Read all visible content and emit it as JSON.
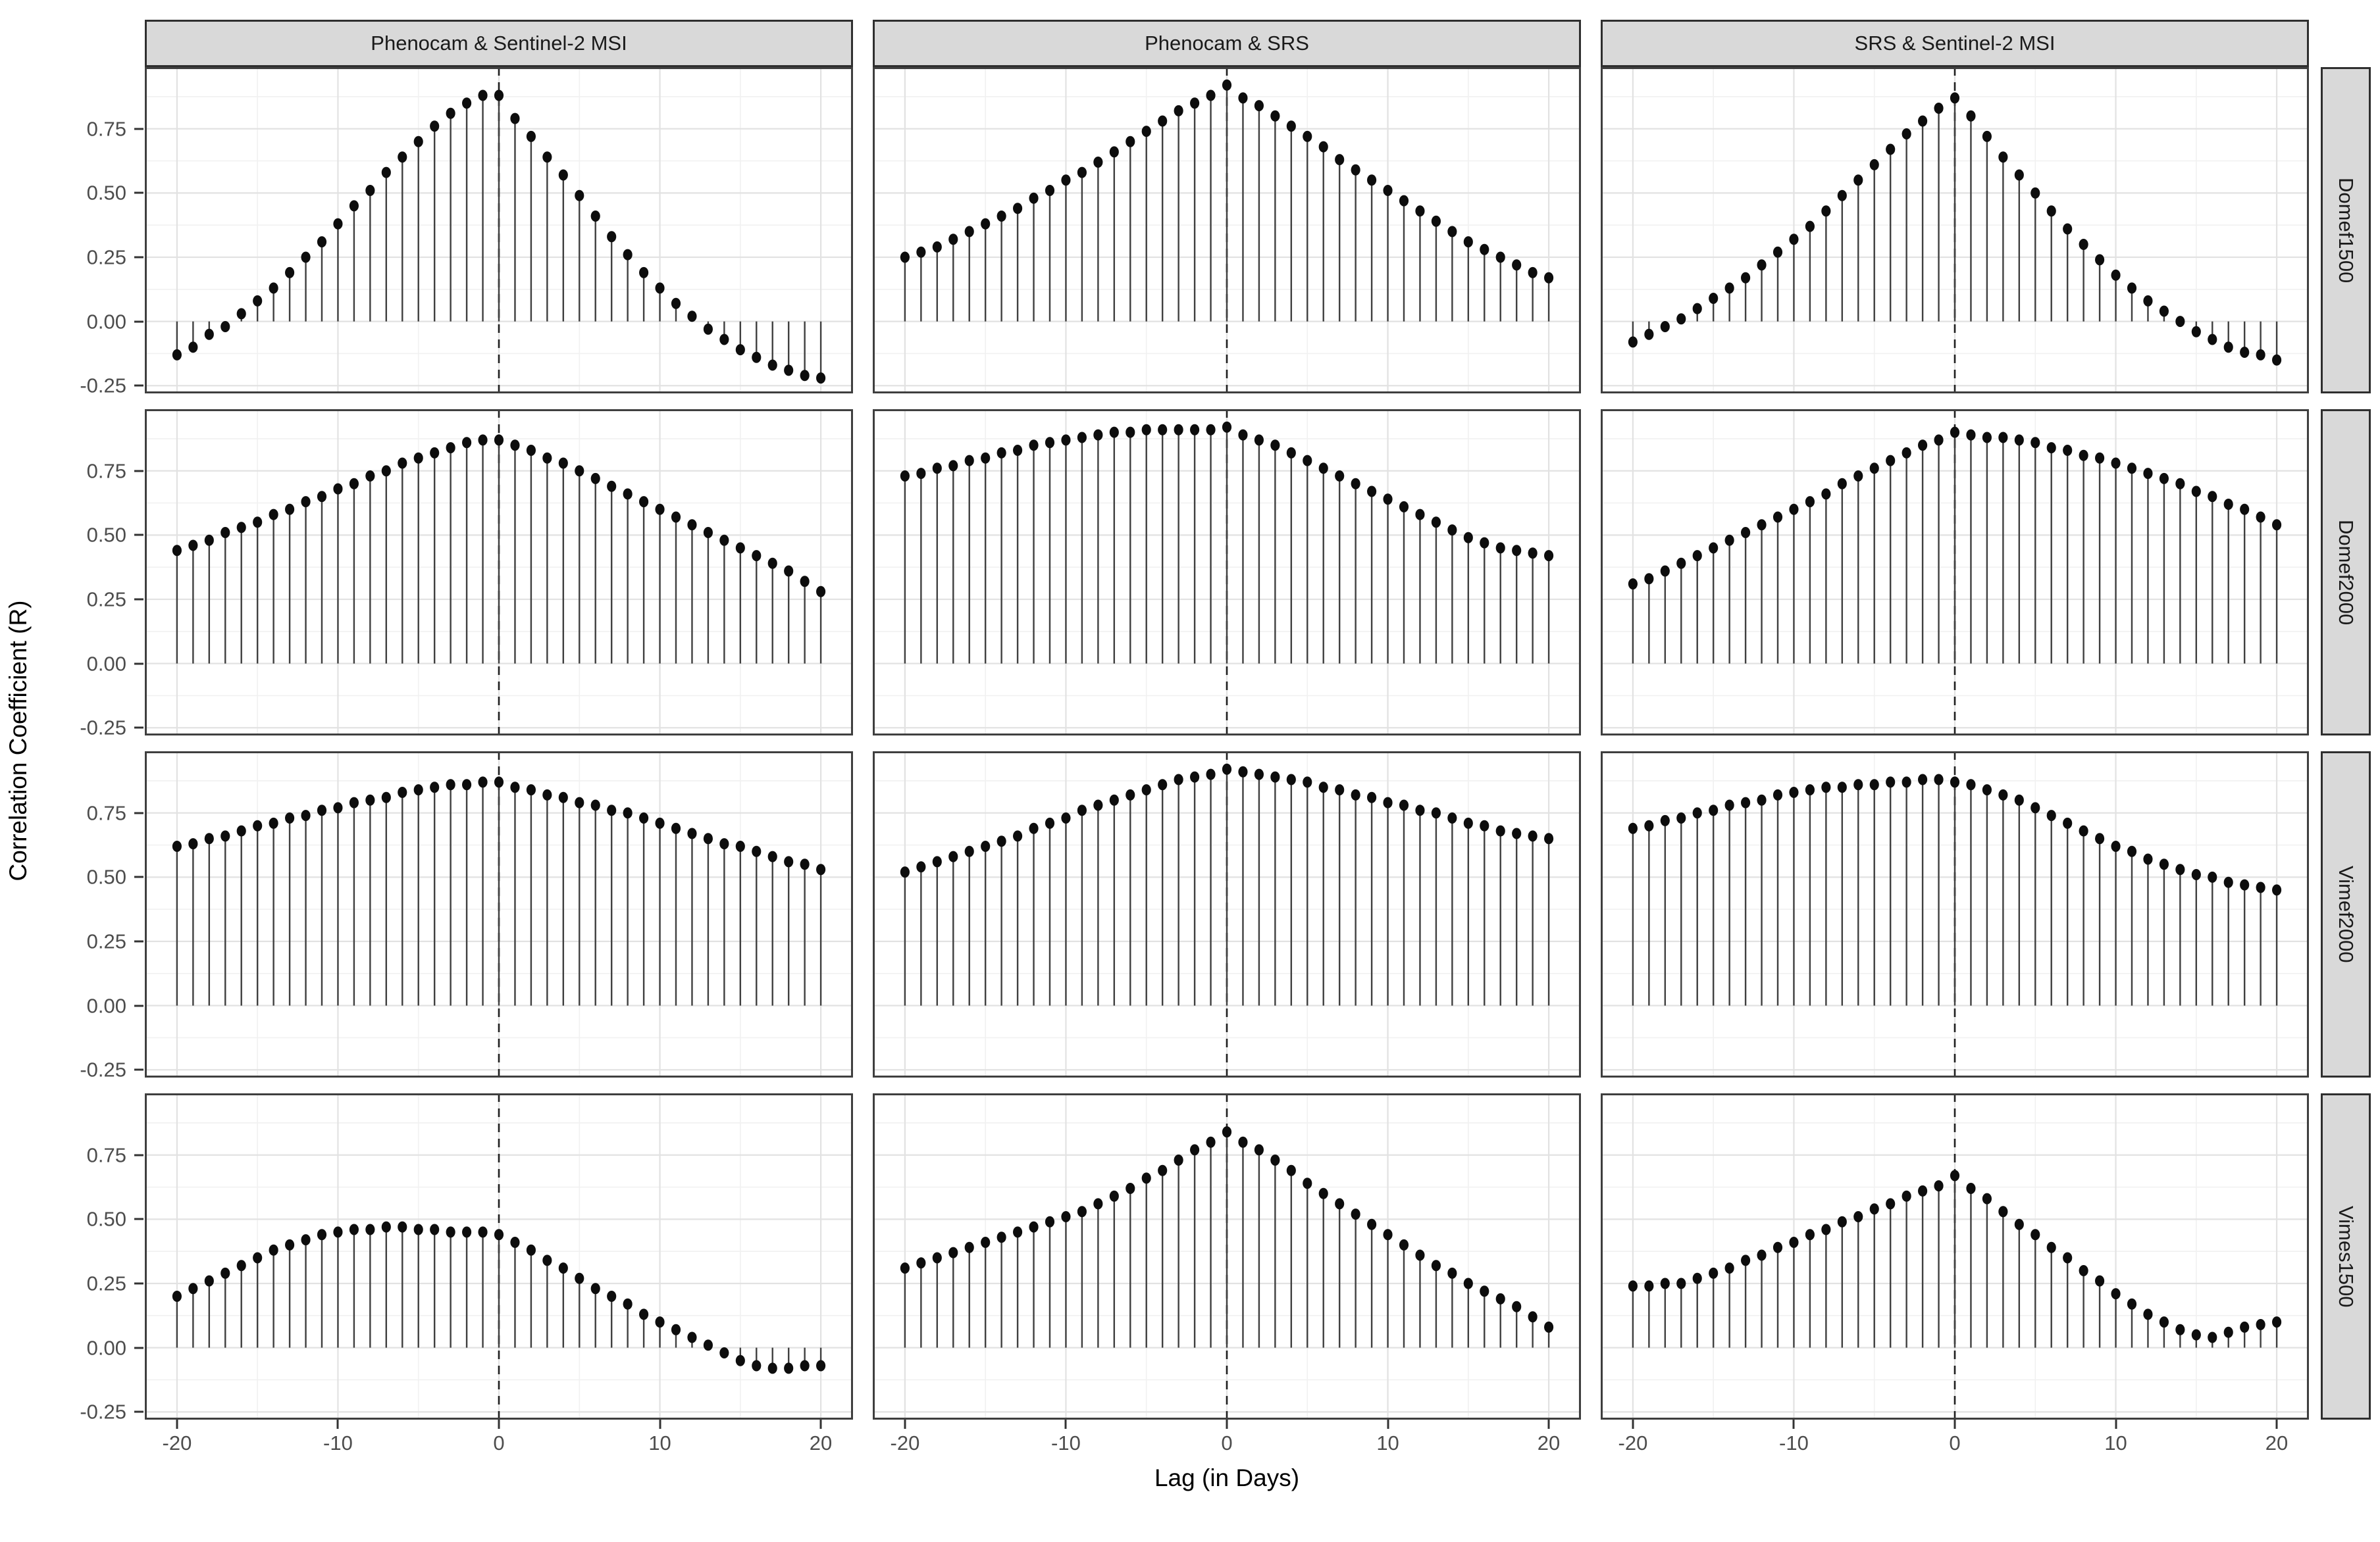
{
  "figure": {
    "background": "#ffffff"
  },
  "colors": {
    "strip_bg": "#d9d9d9",
    "strip_border": "#2f2f2f",
    "panel_border": "#3f3f3f",
    "grid_major": "#e2e2e2",
    "grid_minor": "#f1f1f1",
    "stem": "#404040",
    "point": "#0d0d0d",
    "dashed_line": "#1f1f1f",
    "tick_text": "#4d4d4d"
  },
  "chart_data": {
    "type": "stem",
    "x_label": "Lag (in Days)",
    "y_label": "Correlation Coefficient (R)",
    "x": [
      -20,
      -19,
      -18,
      -17,
      -16,
      -15,
      -14,
      -13,
      -12,
      -11,
      -10,
      -9,
      -8,
      -7,
      -6,
      -5,
      -4,
      -3,
      -2,
      -1,
      0,
      1,
      2,
      3,
      4,
      5,
      6,
      7,
      8,
      9,
      10,
      11,
      12,
      13,
      14,
      15,
      16,
      17,
      18,
      19,
      20
    ],
    "xlim": [
      -22,
      22
    ],
    "ylim": [
      -0.28,
      0.99
    ],
    "x_ticks": [
      -20,
      -10,
      0,
      10,
      20
    ],
    "x_tick_labels": [
      "-20",
      "-10",
      "0",
      "10",
      "20"
    ],
    "x_minor_ticks": [
      -15,
      -5,
      5,
      15
    ],
    "y_ticks": [
      0.75,
      0.5,
      0.25,
      0,
      -0.25
    ],
    "y_tick_labels": [
      "0.75",
      "0.50",
      "0.25",
      "0.00",
      "-0.25"
    ],
    "y_minor_ticks": [
      0.875,
      0.625,
      0.375,
      0.125,
      -0.125
    ],
    "reference_line_x": 0,
    "grid": "on",
    "facet_columns": [
      "Phenocam & Sentinel-2 MSI",
      "Phenocam & SRS",
      "SRS & Sentinel-2 MSI"
    ],
    "facet_rows": [
      "Domef1500",
      "Domef2000",
      "Vimef2000",
      "Vimes1500"
    ],
    "panels": [
      {
        "row": "Domef1500",
        "col": "Phenocam & Sentinel-2 MSI",
        "values": [
          -0.13,
          -0.1,
          -0.05,
          -0.02,
          0.03,
          0.08,
          0.13,
          0.19,
          0.25,
          0.31,
          0.38,
          0.45,
          0.51,
          0.58,
          0.64,
          0.7,
          0.76,
          0.81,
          0.85,
          0.88,
          0.88,
          0.79,
          0.72,
          0.64,
          0.57,
          0.49,
          0.41,
          0.33,
          0.26,
          0.19,
          0.13,
          0.07,
          0.02,
          -0.03,
          -0.07,
          -0.11,
          -0.14,
          -0.17,
          -0.19,
          -0.21,
          -0.22
        ]
      },
      {
        "row": "Domef1500",
        "col": "Phenocam & SRS",
        "values": [
          0.25,
          0.27,
          0.29,
          0.32,
          0.35,
          0.38,
          0.41,
          0.44,
          0.48,
          0.51,
          0.55,
          0.58,
          0.62,
          0.66,
          0.7,
          0.74,
          0.78,
          0.82,
          0.85,
          0.88,
          0.92,
          0.87,
          0.84,
          0.8,
          0.76,
          0.72,
          0.68,
          0.63,
          0.59,
          0.55,
          0.51,
          0.47,
          0.43,
          0.39,
          0.35,
          0.31,
          0.28,
          0.25,
          0.22,
          0.19,
          0.17
        ]
      },
      {
        "row": "Domef1500",
        "col": "SRS & Sentinel-2 MSI",
        "values": [
          -0.08,
          -0.05,
          -0.02,
          0.01,
          0.05,
          0.09,
          0.13,
          0.17,
          0.22,
          0.27,
          0.32,
          0.37,
          0.43,
          0.49,
          0.55,
          0.61,
          0.67,
          0.73,
          0.78,
          0.83,
          0.87,
          0.8,
          0.72,
          0.64,
          0.57,
          0.5,
          0.43,
          0.36,
          0.3,
          0.24,
          0.18,
          0.13,
          0.08,
          0.04,
          0.0,
          -0.04,
          -0.07,
          -0.1,
          -0.12,
          -0.13,
          -0.15
        ]
      },
      {
        "row": "Domef2000",
        "col": "Phenocam & Sentinel-2 MSI",
        "values": [
          0.44,
          0.46,
          0.48,
          0.51,
          0.53,
          0.55,
          0.58,
          0.6,
          0.63,
          0.65,
          0.68,
          0.7,
          0.73,
          0.75,
          0.78,
          0.8,
          0.82,
          0.84,
          0.86,
          0.87,
          0.87,
          0.85,
          0.83,
          0.8,
          0.78,
          0.75,
          0.72,
          0.69,
          0.66,
          0.63,
          0.6,
          0.57,
          0.54,
          0.51,
          0.48,
          0.45,
          0.42,
          0.39,
          0.36,
          0.32,
          0.28
        ]
      },
      {
        "row": "Domef2000",
        "col": "Phenocam & SRS",
        "values": [
          0.73,
          0.74,
          0.76,
          0.77,
          0.79,
          0.8,
          0.82,
          0.83,
          0.85,
          0.86,
          0.87,
          0.88,
          0.89,
          0.9,
          0.9,
          0.91,
          0.91,
          0.91,
          0.91,
          0.91,
          0.92,
          0.89,
          0.87,
          0.85,
          0.82,
          0.79,
          0.76,
          0.73,
          0.7,
          0.67,
          0.64,
          0.61,
          0.58,
          0.55,
          0.52,
          0.49,
          0.47,
          0.45,
          0.44,
          0.43,
          0.42
        ]
      },
      {
        "row": "Domef2000",
        "col": "SRS & Sentinel-2 MSI",
        "values": [
          0.31,
          0.33,
          0.36,
          0.39,
          0.42,
          0.45,
          0.48,
          0.51,
          0.54,
          0.57,
          0.6,
          0.63,
          0.66,
          0.7,
          0.73,
          0.76,
          0.79,
          0.82,
          0.85,
          0.87,
          0.9,
          0.89,
          0.88,
          0.88,
          0.87,
          0.86,
          0.84,
          0.83,
          0.81,
          0.8,
          0.78,
          0.76,
          0.74,
          0.72,
          0.7,
          0.67,
          0.65,
          0.62,
          0.6,
          0.57,
          0.54
        ]
      },
      {
        "row": "Vimef2000",
        "col": "Phenocam & Sentinel-2 MSI",
        "values": [
          0.62,
          0.63,
          0.65,
          0.66,
          0.68,
          0.7,
          0.71,
          0.73,
          0.74,
          0.76,
          0.77,
          0.79,
          0.8,
          0.81,
          0.83,
          0.84,
          0.85,
          0.86,
          0.86,
          0.87,
          0.87,
          0.85,
          0.84,
          0.82,
          0.81,
          0.79,
          0.78,
          0.76,
          0.75,
          0.73,
          0.71,
          0.69,
          0.67,
          0.65,
          0.63,
          0.62,
          0.6,
          0.58,
          0.56,
          0.55,
          0.53
        ]
      },
      {
        "row": "Vimef2000",
        "col": "Phenocam & SRS",
        "values": [
          0.52,
          0.54,
          0.56,
          0.58,
          0.6,
          0.62,
          0.64,
          0.66,
          0.69,
          0.71,
          0.73,
          0.76,
          0.78,
          0.8,
          0.82,
          0.84,
          0.86,
          0.88,
          0.89,
          0.9,
          0.92,
          0.91,
          0.9,
          0.89,
          0.88,
          0.87,
          0.85,
          0.84,
          0.82,
          0.81,
          0.79,
          0.78,
          0.76,
          0.75,
          0.73,
          0.71,
          0.7,
          0.68,
          0.67,
          0.66,
          0.65
        ]
      },
      {
        "row": "Vimef2000",
        "col": "SRS & Sentinel-2 MSI",
        "values": [
          0.69,
          0.7,
          0.72,
          0.73,
          0.75,
          0.76,
          0.78,
          0.79,
          0.8,
          0.82,
          0.83,
          0.84,
          0.85,
          0.85,
          0.86,
          0.86,
          0.87,
          0.87,
          0.88,
          0.88,
          0.87,
          0.86,
          0.84,
          0.82,
          0.8,
          0.77,
          0.74,
          0.71,
          0.68,
          0.65,
          0.62,
          0.6,
          0.57,
          0.55,
          0.53,
          0.51,
          0.5,
          0.48,
          0.47,
          0.46,
          0.45
        ]
      },
      {
        "row": "Vimes1500",
        "col": "Phenocam & Sentinel-2 MSI",
        "values": [
          0.2,
          0.23,
          0.26,
          0.29,
          0.32,
          0.35,
          0.38,
          0.4,
          0.42,
          0.44,
          0.45,
          0.46,
          0.46,
          0.47,
          0.47,
          0.46,
          0.46,
          0.45,
          0.45,
          0.45,
          0.44,
          0.41,
          0.38,
          0.34,
          0.31,
          0.27,
          0.23,
          0.2,
          0.17,
          0.13,
          0.1,
          0.07,
          0.04,
          0.01,
          -0.02,
          -0.05,
          -0.07,
          -0.08,
          -0.08,
          -0.07,
          -0.07
        ]
      },
      {
        "row": "Vimes1500",
        "col": "Phenocam & SRS",
        "values": [
          0.31,
          0.33,
          0.35,
          0.37,
          0.39,
          0.41,
          0.43,
          0.45,
          0.47,
          0.49,
          0.51,
          0.53,
          0.56,
          0.59,
          0.62,
          0.66,
          0.69,
          0.73,
          0.77,
          0.8,
          0.84,
          0.8,
          0.77,
          0.73,
          0.69,
          0.64,
          0.6,
          0.56,
          0.52,
          0.48,
          0.44,
          0.4,
          0.36,
          0.32,
          0.29,
          0.25,
          0.22,
          0.19,
          0.16,
          0.12,
          0.08
        ]
      },
      {
        "row": "Vimes1500",
        "col": "SRS & Sentinel-2 MSI",
        "values": [
          0.24,
          0.24,
          0.25,
          0.25,
          0.27,
          0.29,
          0.31,
          0.34,
          0.36,
          0.39,
          0.41,
          0.44,
          0.46,
          0.49,
          0.51,
          0.54,
          0.56,
          0.59,
          0.61,
          0.63,
          0.67,
          0.62,
          0.58,
          0.53,
          0.48,
          0.44,
          0.39,
          0.35,
          0.3,
          0.26,
          0.21,
          0.17,
          0.13,
          0.1,
          0.07,
          0.05,
          0.04,
          0.06,
          0.08,
          0.09,
          0.1
        ]
      }
    ]
  }
}
